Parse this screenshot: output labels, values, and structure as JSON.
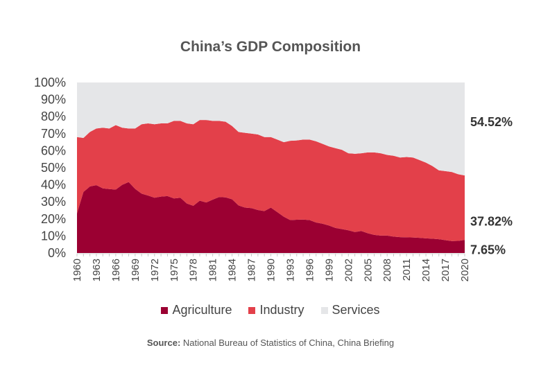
{
  "chart_data": {
    "type": "area",
    "stacked": true,
    "title": "China’s GDP Composition",
    "xlabel": "",
    "ylabel": "",
    "ylim": [
      0,
      100
    ],
    "y_ticks": [
      "0%",
      "10%",
      "20%",
      "30%",
      "40%",
      "50%",
      "60%",
      "70%",
      "80%",
      "90%",
      "100%"
    ],
    "x_ticks": [
      "1960",
      "1963",
      "1966",
      "1969",
      "1972",
      "1975",
      "1978",
      "1981",
      "1984",
      "1987",
      "1990",
      "1993",
      "1996",
      "1999",
      "2002",
      "2005",
      "2008",
      "2011",
      "2014",
      "2017",
      "2020"
    ],
    "x_start": 1960,
    "x_end": 2020,
    "legend_position": "bottom",
    "series": [
      {
        "name": "Agriculture",
        "color": "#9b0032",
        "values": [
          23.2,
          35.8,
          39.0,
          39.8,
          37.9,
          37.5,
          37.2,
          40.0,
          41.6,
          37.6,
          34.8,
          33.7,
          32.4,
          33.1,
          33.4,
          32.0,
          32.4,
          29.0,
          27.7,
          30.7,
          29.6,
          31.3,
          32.8,
          32.6,
          31.5,
          27.9,
          26.6,
          26.3,
          25.2,
          24.6,
          26.6,
          24.0,
          21.3,
          19.3,
          19.5,
          19.6,
          19.3,
          17.9,
          17.2,
          16.1,
          14.7,
          14.0,
          13.3,
          12.3,
          12.9,
          11.6,
          10.6,
          10.2,
          10.2,
          9.6,
          9.3,
          9.2,
          9.1,
          8.9,
          8.6,
          8.4,
          8.1,
          7.5,
          7.0,
          7.1,
          7.65
        ]
      },
      {
        "name": "Industry",
        "color": "#e3404a",
        "values": [
          44.8,
          31.7,
          32.0,
          33.2,
          35.6,
          35.5,
          37.8,
          33.5,
          31.4,
          35.4,
          40.7,
          42.3,
          43.1,
          42.9,
          42.6,
          45.5,
          45.1,
          47.0,
          47.8,
          47.3,
          48.4,
          46.2,
          44.7,
          44.4,
          43.0,
          43.1,
          43.9,
          43.7,
          44.3,
          43.4,
          41.4,
          42.5,
          43.7,
          46.5,
          46.5,
          46.9,
          47.2,
          47.6,
          46.8,
          46.4,
          46.8,
          46.5,
          45.2,
          45.9,
          45.6,
          47.4,
          48.4,
          48.3,
          47.3,
          47.4,
          46.7,
          47.1,
          46.9,
          45.6,
          44.4,
          42.6,
          40.4,
          40.5,
          40.5,
          39.1,
          37.82
        ]
      },
      {
        "name": "Services",
        "color": "#e5e6e8",
        "values": [
          32.0,
          32.5,
          29.0,
          27.0,
          26.5,
          27.0,
          25.0,
          26.5,
          27.0,
          27.0,
          24.5,
          24.0,
          24.5,
          24.0,
          24.0,
          22.5,
          22.5,
          24.0,
          24.5,
          22.0,
          22.0,
          22.5,
          22.5,
          23.0,
          25.5,
          29.0,
          29.5,
          30.0,
          30.5,
          32.0,
          32.0,
          33.5,
          35.0,
          34.2,
          34.0,
          33.5,
          33.5,
          34.5,
          36.0,
          37.5,
          38.5,
          39.5,
          41.5,
          41.8,
          41.5,
          41.0,
          41.0,
          41.5,
          42.5,
          43.0,
          44.0,
          43.7,
          44.0,
          45.5,
          47.0,
          49.0,
          51.5,
          52.0,
          52.5,
          53.8,
          54.52
        ]
      }
    ],
    "end_labels": {
      "services": "54.52%",
      "industry": "37.82%",
      "agriculture": "7.65%"
    },
    "source_label": "Source:",
    "source_text": "National Bureau of Statistics of China, China Briefing"
  }
}
